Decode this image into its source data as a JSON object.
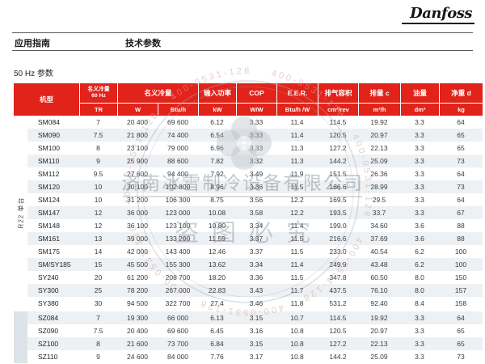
{
  "header": {
    "logo": "Danfoss",
    "category": "应用指南",
    "title": "技术参数"
  },
  "section": {
    "title": "50 Hz 参数"
  },
  "colors": {
    "danfoss_red": "#e2231a",
    "row_alt": "#edf1f4",
    "group_band": "#dce3e9"
  },
  "table": {
    "header": {
      "model": "机型",
      "cap60_line1": "名义冷量",
      "cap60_line2": "60 Hz",
      "cap60_unit": "TR",
      "cap_label": "名义冷量",
      "cap_unit_w": "W",
      "cap_unit_btu": "Btu/h",
      "power_label": "输入功率",
      "power_unit": "kW",
      "cop_label": "COP",
      "cop_unit": "W/W",
      "eer_label": "E.E.R.",
      "eer_unit": "Btu/h /W",
      "disp_label": "排气容积",
      "disp_unit": "cm³/rev",
      "flow_label": "排量 c",
      "flow_unit": "m³/h",
      "oil_label": "油量",
      "oil_unit": "dm³",
      "weight_label": "净重 d",
      "weight_unit": "kg"
    },
    "groups": [
      {
        "label": "R22 单台",
        "rows": [
          [
            "SM084",
            "7",
            "20 400",
            "69 600",
            "6.12",
            "3.33",
            "11.4",
            "114.5",
            "19.92",
            "3.3",
            "64"
          ],
          [
            "SM090",
            "7.5",
            "21 800",
            "74 400",
            "6.54",
            "3.33",
            "11.4",
            "120.5",
            "20.97",
            "3.3",
            "65"
          ],
          [
            "SM100",
            "8",
            "23 100",
            "79 000",
            "6.96",
            "3.33",
            "11.3",
            "127.2",
            "22.13",
            "3.3",
            "65"
          ],
          [
            "SM110",
            "9",
            "25 900",
            "88 600",
            "7.82",
            "3.32",
            "11.3",
            "144.2",
            "25.09",
            "3.3",
            "73"
          ],
          [
            "SM112",
            "9.5",
            "27 600",
            "94 400",
            "7.92",
            "3.49",
            "11.9",
            "151.5",
            "26.36",
            "3.3",
            "64"
          ],
          [
            "SM120",
            "10",
            "30 100",
            "102 800",
            "8.96",
            "3.36",
            "11.5",
            "166.6",
            "28.99",
            "3.3",
            "73"
          ],
          [
            "SM124",
            "10",
            "31 200",
            "106 300",
            "8.75",
            "3.56",
            "12.2",
            "169.5",
            "29.5",
            "3.3",
            "64"
          ],
          [
            "SM147",
            "12",
            "36 000",
            "123 000",
            "10.08",
            "3.58",
            "12.2",
            "193.5",
            "33.7",
            "3.3",
            "67"
          ],
          [
            "SM148",
            "12",
            "36 100",
            "123 100",
            "10.80",
            "3.34",
            "11.4",
            "199.0",
            "34.60",
            "3.6",
            "88"
          ],
          [
            "SM161",
            "13",
            "39 000",
            "133 200",
            "11.59",
            "3.37",
            "11.5",
            "216.6",
            "37.69",
            "3.6",
            "88"
          ],
          [
            "SM175",
            "14",
            "42 000",
            "143 400",
            "12.46",
            "3.37",
            "11.5",
            "233.0",
            "40.54",
            "6.2",
            "100"
          ],
          [
            "SM/SY185",
            "15",
            "45 500",
            "155 300",
            "13.62",
            "3.34",
            "11.4",
            "249.9",
            "43.48",
            "6.2",
            "100"
          ],
          [
            "SY240",
            "20",
            "61 200",
            "208 700",
            "18.20",
            "3.36",
            "11.5",
            "347.8",
            "60.50",
            "8.0",
            "150"
          ],
          [
            "SY300",
            "25",
            "78 200",
            "267 000",
            "22.83",
            "3.43",
            "11.7",
            "437.5",
            "76.10",
            "8.0",
            "157"
          ],
          [
            "SY380",
            "30",
            "94 500",
            "322 700",
            "27.4",
            "3.46",
            "11.8",
            "531.2",
            "92.40",
            "8.4",
            "158"
          ]
        ]
      },
      {
        "label": "",
        "rows": [
          [
            "SZ084",
            "7",
            "19 300",
            "66 000",
            "6.13",
            "3.15",
            "10.7",
            "114.5",
            "19.92",
            "3.3",
            "64"
          ],
          [
            "SZ090",
            "7.5",
            "20 400",
            "69 600",
            "6.45",
            "3.16",
            "10.8",
            "120.5",
            "20.97",
            "3.3",
            "65"
          ],
          [
            "SZ100",
            "8",
            "21 600",
            "73 700",
            "6.84",
            "3.15",
            "10.8",
            "127.2",
            "22.13",
            "3.3",
            "65"
          ],
          [
            "SZ110",
            "9",
            "24 600",
            "84 000",
            "7.76",
            "3.17",
            "10.8",
            "144.2",
            "25.09",
            "3.3",
            "73"
          ]
        ]
      }
    ]
  },
  "watermark": {
    "company": "济南冰雪制冷设备有限公司",
    "notice": "盗图必究",
    "ring_text": "400-0531-128"
  }
}
